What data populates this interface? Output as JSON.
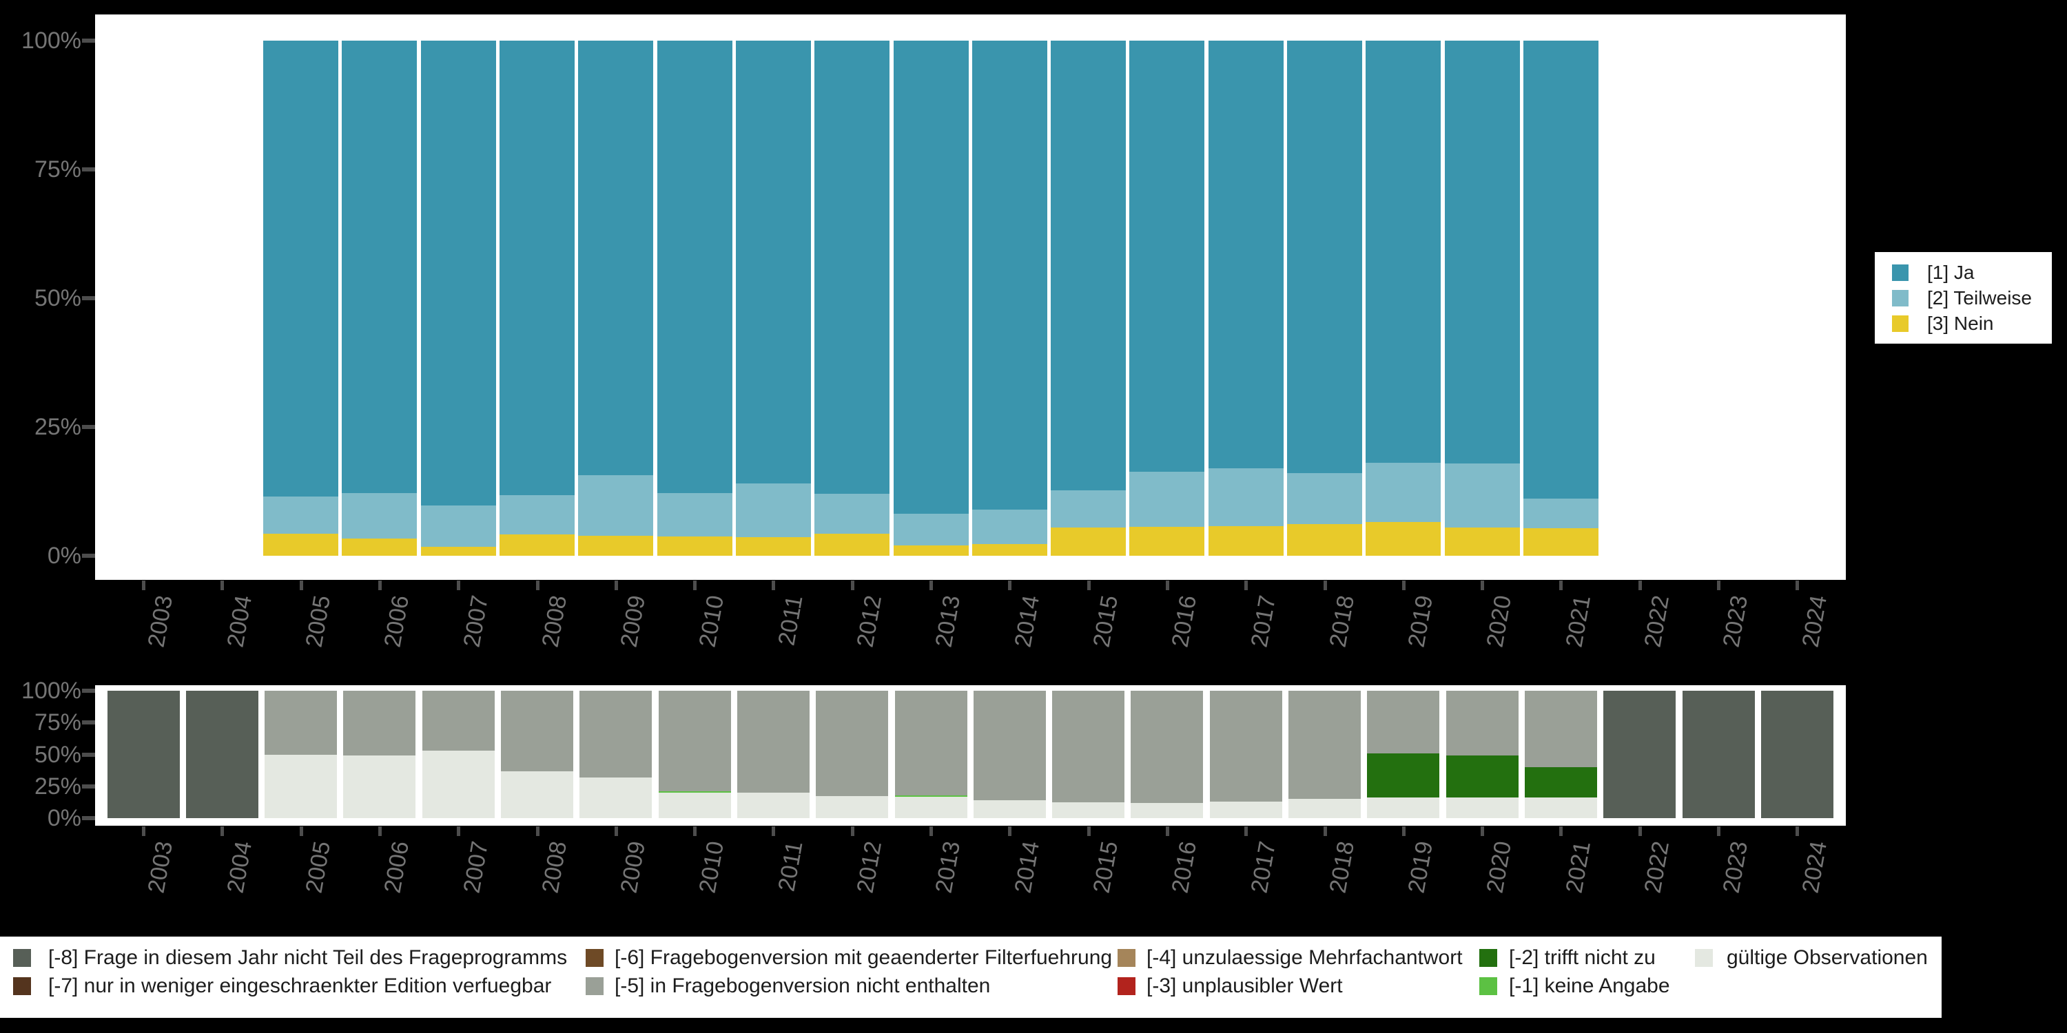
{
  "page_background": "#000000",
  "colors": {
    "panel": "#ffffff",
    "axis_text": "#757575",
    "tick_mark": "#4d4d4d",
    "legend_text": "#1d1d1d",
    "ja": "#3a95ad",
    "teilweise": "#80bbc9",
    "nein": "#e8ca2a",
    "valid": "#e4e8e1",
    "m1": "#5cc143",
    "m2": "#23700f",
    "m3": "#b2231d",
    "m4": "#a5855a",
    "m5": "#9aa097",
    "m6": "#6e4a26",
    "m7": "#54341e",
    "m8": "#575f57"
  },
  "chart_data": [
    {
      "type": "bar",
      "stacked": true,
      "title": "",
      "x_axis_years": [
        2003,
        2004,
        2005,
        2006,
        2007,
        2008,
        2009,
        2010,
        2011,
        2012,
        2013,
        2014,
        2015,
        2016,
        2017,
        2018,
        2019,
        2020,
        2021,
        2022,
        2023,
        2024
      ],
      "y_tick_labels": [
        "0%",
        "25%",
        "50%",
        "75%",
        "100%"
      ],
      "y_tick_pcts": [
        0,
        25,
        50,
        75,
        100
      ],
      "ylim": [
        0,
        100
      ],
      "grid": false,
      "legend_position": "right",
      "categories": [
        2005,
        2006,
        2007,
        2008,
        2009,
        2010,
        2011,
        2012,
        2013,
        2014,
        2015,
        2016,
        2017,
        2018,
        2019,
        2020,
        2021
      ],
      "series": [
        {
          "name": "[1] Ja",
          "color_key": "ja",
          "values": [
            88.5,
            87.8,
            90.3,
            88.2,
            84.3,
            87.9,
            85.9,
            88.0,
            91.8,
            91.0,
            87.3,
            83.7,
            83.0,
            83.9,
            82.0,
            82.1,
            88.9
          ]
        },
        {
          "name": "[2] Teilweise",
          "color_key": "teilweise",
          "values": [
            7.2,
            8.8,
            8.0,
            7.7,
            11.8,
            8.4,
            10.5,
            7.7,
            6.2,
            6.7,
            7.2,
            10.7,
            11.3,
            9.9,
            11.5,
            12.4,
            5.7
          ]
        },
        {
          "name": "[3] Nein",
          "color_key": "nein",
          "values": [
            4.3,
            3.4,
            1.7,
            4.1,
            3.9,
            3.7,
            3.6,
            4.3,
            2.0,
            2.3,
            5.5,
            5.6,
            5.7,
            6.2,
            6.5,
            5.5,
            5.4
          ]
        }
      ],
      "legend": [
        {
          "label": "[1] Ja",
          "color_key": "ja"
        },
        {
          "label": "[2] Teilweise",
          "color_key": "teilweise"
        },
        {
          "label": "[3] Nein",
          "color_key": "nein"
        }
      ]
    },
    {
      "type": "bar",
      "stacked": true,
      "title": "",
      "x_axis_years": [
        2003,
        2004,
        2005,
        2006,
        2007,
        2008,
        2009,
        2010,
        2011,
        2012,
        2013,
        2014,
        2015,
        2016,
        2017,
        2018,
        2019,
        2020,
        2021,
        2022,
        2023,
        2024
      ],
      "y_tick_labels": [
        "0%",
        "25%",
        "50%",
        "75%",
        "100%"
      ],
      "y_tick_pcts": [
        0,
        25,
        50,
        75,
        100
      ],
      "ylim": [
        0,
        100
      ],
      "grid": false,
      "legend_position": "bottom",
      "categories": [
        2003,
        2004,
        2005,
        2006,
        2007,
        2008,
        2009,
        2010,
        2011,
        2012,
        2013,
        2014,
        2015,
        2016,
        2017,
        2018,
        2019,
        2020,
        2021,
        2022,
        2023,
        2024
      ],
      "series": [
        {
          "name": "gültige Observationen",
          "color_key": "valid",
          "values": [
            0,
            0,
            50,
            49,
            53,
            37,
            32,
            20,
            20,
            17.5,
            17,
            14,
            12.5,
            12,
            13,
            15,
            16,
            16,
            16,
            0,
            0,
            0
          ]
        },
        {
          "name": "[-1] keine Angabe",
          "color_key": "m1",
          "values": [
            0,
            0,
            0,
            0,
            0,
            0,
            0,
            1,
            0,
            0,
            1,
            0,
            0,
            0,
            0,
            0,
            0,
            0,
            0,
            0,
            0,
            0
          ]
        },
        {
          "name": "[-2] trifft nicht zu",
          "color_key": "m2",
          "values": [
            0,
            0,
            0,
            0,
            0,
            0,
            0,
            0,
            0,
            0,
            0,
            0,
            0,
            0,
            0,
            0,
            35,
            33,
            24,
            0,
            0,
            0
          ]
        },
        {
          "name": "[-5] in Fragebogenversion nicht enthalten",
          "color_key": "m5",
          "values": [
            0,
            0,
            50,
            51,
            47,
            63,
            68,
            79,
            80,
            82.5,
            82,
            86,
            87.5,
            88,
            87,
            85,
            49,
            51,
            60,
            0,
            0,
            0
          ]
        },
        {
          "name": "[-8] Frage in diesem Jahr nicht Teil des Frageprogramms",
          "color_key": "m8",
          "values": [
            100,
            100,
            0,
            0,
            0,
            0,
            0,
            0,
            0,
            0,
            0,
            0,
            0,
            0,
            0,
            0,
            0,
            0,
            0,
            100,
            100,
            100
          ]
        }
      ],
      "legend": [
        {
          "label": "[-8] Frage in diesem Jahr nicht Teil des Frageprogramms",
          "color_key": "m8",
          "row": 0,
          "col": 0
        },
        {
          "label": "[-7] nur in weniger eingeschraenkter Edition verfuegbar",
          "color_key": "m7",
          "row": 1,
          "col": 0
        },
        {
          "label": "[-6] Fragebogenversion mit geaenderter Filterfuehrung",
          "color_key": "m6",
          "row": 0,
          "col": 1
        },
        {
          "label": "[-5] in Fragebogenversion nicht enthalten",
          "color_key": "m5",
          "row": 1,
          "col": 1
        },
        {
          "label": "[-4] unzulaessige Mehrfachantwort",
          "color_key": "m4",
          "row": 0,
          "col": 2
        },
        {
          "label": "[-3] unplausibler Wert",
          "color_key": "m3",
          "row": 1,
          "col": 2
        },
        {
          "label": "[-2] trifft nicht zu",
          "color_key": "m2",
          "row": 0,
          "col": 3
        },
        {
          "label": "[-1] keine Angabe",
          "color_key": "m1",
          "row": 1,
          "col": 3
        },
        {
          "label": "gültige Observationen",
          "color_key": "valid",
          "row": 0,
          "col": 4
        }
      ]
    }
  ]
}
